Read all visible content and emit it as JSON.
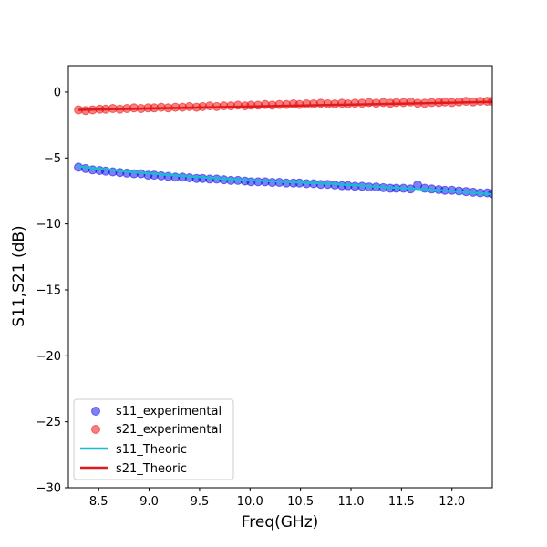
{
  "chart_data": {
    "type": "scatter",
    "xlabel": "Freq(GHz)",
    "ylabel": "S11,S21 (dB)",
    "xlim": [
      8.2,
      12.4
    ],
    "ylim": [
      -30,
      2
    ],
    "xticks": [
      "8.5",
      "9.0",
      "9.5",
      "10.0",
      "10.5",
      "11.0",
      "11.5",
      "12.0"
    ],
    "yticks": [
      "0",
      "−5",
      "−10",
      "−15",
      "−20",
      "−25",
      "−30"
    ],
    "grid": false,
    "legend_position": "lower-left",
    "series": [
      {
        "name": "s11_experimental",
        "kind": "markers",
        "color": "#0000ee",
        "x": [
          8.3,
          8.37,
          8.44,
          8.51,
          8.57,
          8.64,
          8.71,
          8.78,
          8.85,
          8.92,
          8.99,
          9.05,
          9.12,
          9.19,
          9.26,
          9.33,
          9.4,
          9.47,
          9.53,
          9.6,
          9.67,
          9.74,
          9.81,
          9.88,
          9.95,
          10.01,
          10.08,
          10.15,
          10.22,
          10.29,
          10.36,
          10.43,
          10.49,
          10.56,
          10.63,
          10.7,
          10.77,
          10.84,
          10.91,
          10.97,
          11.04,
          11.11,
          11.18,
          11.25,
          11.32,
          11.39,
          11.45,
          11.52,
          11.59,
          11.66,
          11.73,
          11.8,
          11.87,
          11.93,
          12.0,
          12.07,
          12.14,
          12.21,
          12.28,
          12.35,
          12.4
        ],
        "y": [
          -5.7,
          -5.8,
          -5.9,
          -5.95,
          -6.0,
          -6.05,
          -6.1,
          -6.15,
          -6.2,
          -6.2,
          -6.3,
          -6.3,
          -6.35,
          -6.4,
          -6.45,
          -6.45,
          -6.5,
          -6.55,
          -6.55,
          -6.6,
          -6.6,
          -6.65,
          -6.7,
          -6.7,
          -6.75,
          -6.8,
          -6.8,
          -6.8,
          -6.85,
          -6.85,
          -6.9,
          -6.9,
          -6.9,
          -6.95,
          -6.95,
          -7.0,
          -7.0,
          -7.05,
          -7.1,
          -7.1,
          -7.15,
          -7.15,
          -7.2,
          -7.2,
          -7.25,
          -7.3,
          -7.3,
          -7.3,
          -7.35,
          -7.05,
          -7.3,
          -7.35,
          -7.4,
          -7.45,
          -7.45,
          -7.5,
          -7.55,
          -7.6,
          -7.65,
          -7.65,
          -7.7
        ]
      },
      {
        "name": "s21_experimental",
        "kind": "markers",
        "color": "#ee0000",
        "x": [
          8.3,
          8.37,
          8.44,
          8.51,
          8.57,
          8.64,
          8.71,
          8.78,
          8.85,
          8.92,
          8.99,
          9.05,
          9.12,
          9.19,
          9.26,
          9.33,
          9.4,
          9.47,
          9.53,
          9.6,
          9.67,
          9.74,
          9.81,
          9.88,
          9.95,
          10.01,
          10.08,
          10.15,
          10.22,
          10.29,
          10.36,
          10.43,
          10.49,
          10.56,
          10.63,
          10.7,
          10.77,
          10.84,
          10.91,
          10.97,
          11.04,
          11.11,
          11.18,
          11.25,
          11.32,
          11.39,
          11.45,
          11.52,
          11.59,
          11.66,
          11.73,
          11.8,
          11.87,
          11.93,
          12.0,
          12.07,
          12.14,
          12.21,
          12.28,
          12.35,
          12.4
        ],
        "y": [
          -1.35,
          -1.4,
          -1.35,
          -1.3,
          -1.3,
          -1.25,
          -1.3,
          -1.25,
          -1.2,
          -1.25,
          -1.2,
          -1.2,
          -1.15,
          -1.2,
          -1.15,
          -1.15,
          -1.1,
          -1.15,
          -1.1,
          -1.05,
          -1.1,
          -1.05,
          -1.05,
          -1.0,
          -1.05,
          -1.0,
          -1.0,
          -0.95,
          -1.0,
          -0.95,
          -0.95,
          -0.9,
          -0.95,
          -0.9,
          -0.9,
          -0.85,
          -0.9,
          -0.9,
          -0.85,
          -0.9,
          -0.85,
          -0.85,
          -0.8,
          -0.85,
          -0.8,
          -0.85,
          -0.8,
          -0.8,
          -0.75,
          -0.85,
          -0.85,
          -0.8,
          -0.8,
          -0.75,
          -0.8,
          -0.75,
          -0.7,
          -0.75,
          -0.7,
          -0.7,
          -0.7
        ]
      },
      {
        "name": "s11_Theoric",
        "kind": "line",
        "color": "#17becf",
        "x": [
          8.3,
          8.8,
          9.3,
          9.8,
          10.3,
          10.8,
          11.3,
          11.8,
          12.4
        ],
        "y": [
          -5.65,
          -6.05,
          -6.35,
          -6.6,
          -6.8,
          -6.95,
          -7.2,
          -7.4,
          -7.75
        ]
      },
      {
        "name": "s21_Theoric",
        "kind": "line",
        "color": "#e31a1c",
        "x": [
          8.3,
          12.4
        ],
        "y": [
          -1.35,
          -0.75
        ]
      }
    ]
  }
}
